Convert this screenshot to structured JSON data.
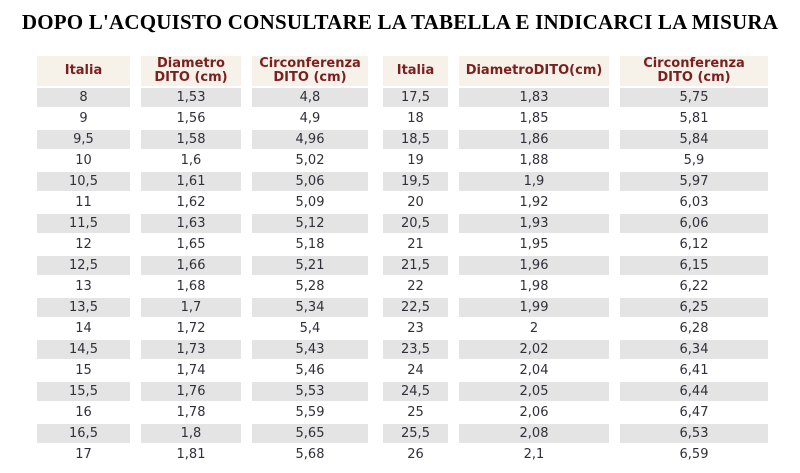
{
  "title": "DOPO L'ACQUISTO CONSULTARE LA TABELLA E INDICARCI LA MISURA",
  "colors": {
    "header_bg": "#f6f1e9",
    "header_text": "#7c1f1f",
    "row_alt_bg": "#e4e4e4",
    "body_text": "#30303a"
  },
  "tables": [
    {
      "name": "ring-size-table-left",
      "headers": [
        "Italia",
        "Diametro\nDITO (cm)",
        "Circonferenza\nDITO (cm)"
      ],
      "rows": [
        [
          "8",
          "1,53",
          "4,8"
        ],
        [
          "9",
          "1,56",
          "4,9"
        ],
        [
          "9,5",
          "1,58",
          "4,96"
        ],
        [
          "10",
          "1,6",
          "5,02"
        ],
        [
          "10,5",
          "1,61",
          "5,06"
        ],
        [
          "11",
          "1,62",
          "5,09"
        ],
        [
          "11,5",
          "1,63",
          "5,12"
        ],
        [
          "12",
          "1,65",
          "5,18"
        ],
        [
          "12,5",
          "1,66",
          "5,21"
        ],
        [
          "13",
          "1,68",
          "5,28"
        ],
        [
          "13,5",
          "1,7",
          "5,34"
        ],
        [
          "14",
          "1,72",
          "5,4"
        ],
        [
          "14,5",
          "1,73",
          "5,43"
        ],
        [
          "15",
          "1,74",
          "5,46"
        ],
        [
          "15,5",
          "1,76",
          "5,53"
        ],
        [
          "16",
          "1,78",
          "5,59"
        ],
        [
          "16,5",
          "1,8",
          "5,65"
        ],
        [
          "17",
          "1,81",
          "5,68"
        ]
      ]
    },
    {
      "name": "ring-size-table-right",
      "headers": [
        "Italia",
        "DiametroDITO(cm)",
        "Circonferenza\nDITO (cm)"
      ],
      "rows": [
        [
          "17,5",
          "1,83",
          "5,75"
        ],
        [
          "18",
          "1,85",
          "5,81"
        ],
        [
          "18,5",
          "1,86",
          "5,84"
        ],
        [
          "19",
          "1,88",
          "5,9"
        ],
        [
          "19,5",
          "1,9",
          "5,97"
        ],
        [
          "20",
          "1,92",
          "6,03"
        ],
        [
          "20,5",
          "1,93",
          "6,06"
        ],
        [
          "21",
          "1,95",
          "6,12"
        ],
        [
          "21,5",
          "1,96",
          "6,15"
        ],
        [
          "22",
          "1,98",
          "6,22"
        ],
        [
          "22,5",
          "1,99",
          "6,25"
        ],
        [
          "23",
          "2",
          "6,28"
        ],
        [
          "23,5",
          "2,02",
          "6,34"
        ],
        [
          "24",
          "2,04",
          "6,41"
        ],
        [
          "24,5",
          "2,05",
          "6,44"
        ],
        [
          "25",
          "2,06",
          "6,47"
        ],
        [
          "25,5",
          "2,08",
          "6,53"
        ],
        [
          "26",
          "2,1",
          "6,59"
        ]
      ]
    }
  ]
}
